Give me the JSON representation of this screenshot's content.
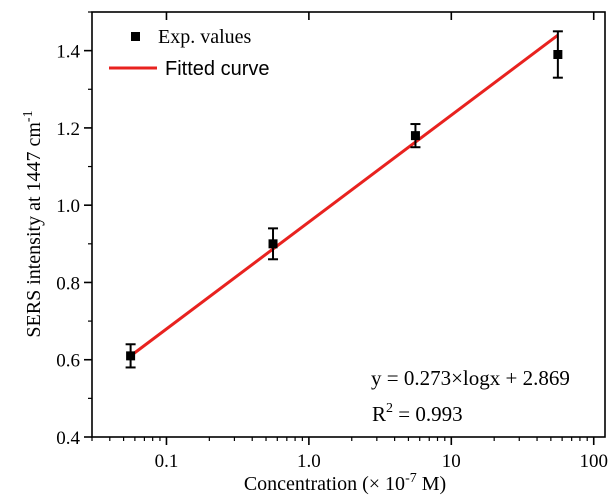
{
  "chart_data": {
    "type": "scatter",
    "x_scale": "log",
    "xlim": [
      0.03,
      120
    ],
    "ylim": [
      0.4,
      1.5
    ],
    "xticks": [
      0.1,
      1.0,
      10,
      100
    ],
    "xtick_labels": [
      "0.1",
      "1.0",
      "10",
      "100"
    ],
    "yticks": [
      0.4,
      0.6,
      0.8,
      1.0,
      1.2,
      1.4
    ],
    "ytick_labels": [
      "0.4",
      "0.6",
      "0.8",
      "1.0",
      "1.2",
      "1.4"
    ],
    "xlabel": {
      "main": "Concentration (× 10",
      "sup": "-7",
      "tail": " M)"
    },
    "ylabel": {
      "main": "SERS intensity at 1447 cm",
      "sup": "-1"
    },
    "grid": false,
    "legend": {
      "position": "top-left",
      "entries": [
        {
          "label": "Exp. values",
          "kind": "marker",
          "color": "#000000"
        },
        {
          "label": "Fitted curve",
          "kind": "line",
          "color": "#e8221f"
        }
      ]
    },
    "series": [
      {
        "name": "Exp. values",
        "kind": "scatter",
        "color": "#000000",
        "x": [
          0.056,
          0.56,
          5.6,
          56
        ],
        "y": [
          0.61,
          0.9,
          1.18,
          1.39
        ],
        "yerr": [
          0.03,
          0.04,
          0.03,
          0.06
        ]
      },
      {
        "name": "Fitted curve",
        "kind": "line",
        "color": "#e8221f",
        "x": [
          0.056,
          56
        ],
        "y": [
          0.61,
          1.44
        ]
      }
    ],
    "annotations": {
      "equation": "y = 0.273×logx + 2.869",
      "r2_label": "R",
      "r2_sup": "2",
      "r2_value": " = 0.993"
    }
  }
}
